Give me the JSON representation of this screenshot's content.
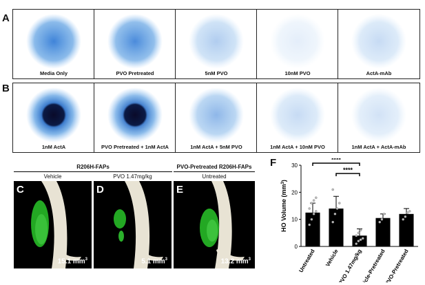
{
  "panels": {
    "A": "A",
    "B": "B",
    "C": "C",
    "D": "D",
    "E": "E",
    "F": "F"
  },
  "row_a": [
    {
      "caption": "Media Only",
      "intensity": 0.85
    },
    {
      "caption": "PVO Pretreated",
      "intensity": 0.8
    },
    {
      "caption": "5nM PVO",
      "intensity": 0.35
    },
    {
      "caption": "10nM PVO",
      "intensity": 0.12
    },
    {
      "caption": "ActA-mAb",
      "intensity": 0.25
    }
  ],
  "row_b": [
    {
      "caption": "1nM ActA",
      "intensity": 0.9
    },
    {
      "caption": "PVO Pretreated + 1nM ActA",
      "intensity": 0.85
    },
    {
      "caption": "1nM ActA + 5nM PVO",
      "intensity": 0.5
    },
    {
      "caption": "1nM ActA + 10nM PVO",
      "intensity": 0.25
    },
    {
      "caption": "1nM ActA + ActA-mAb",
      "intensity": 0.2
    }
  ],
  "ct": {
    "group1": "R206H-FAPs",
    "group2": "PVO-Pretreated R206H-FAPs",
    "scans": [
      {
        "treatment": "Vehicle",
        "volume": "15.1 mm",
        "unit_exp": "3"
      },
      {
        "treatment": "PVO 1.47mg/kg",
        "volume": "5.1 mm",
        "unit_exp": "3"
      },
      {
        "treatment": "Untreated",
        "volume": "13.2 mm",
        "unit_exp": "3"
      }
    ]
  },
  "chart_data": {
    "type": "bar",
    "ylabel": "HO Volume  (mm",
    "ylabel_exp": "3",
    "ylabel_close": ")",
    "ylim": [
      0,
      30
    ],
    "yticks": [
      0,
      10,
      20,
      30
    ],
    "categories": [
      "Untreated",
      "Vehicle",
      "PVO 1.47mg/kg",
      "Vehicle-Pretreated",
      "PVO-Pretreated"
    ],
    "values": [
      12.5,
      14,
      4,
      10.5,
      12
    ],
    "errors": [
      3.5,
      4.5,
      2.5,
      1.5,
      2
    ],
    "points": [
      [
        8,
        10,
        12,
        13,
        14,
        16,
        17,
        18
      ],
      [
        9,
        12,
        14,
        16,
        21
      ],
      [
        1,
        2,
        2.5,
        3,
        4,
        5,
        6
      ],
      [
        9,
        10,
        12
      ],
      [
        10,
        11,
        12.5,
        13
      ]
    ],
    "significance": [
      {
        "from": 0,
        "to": 2,
        "label": "****"
      },
      {
        "from": 1,
        "to": 2,
        "label": "****"
      }
    ],
    "bar_color": "#000000"
  }
}
